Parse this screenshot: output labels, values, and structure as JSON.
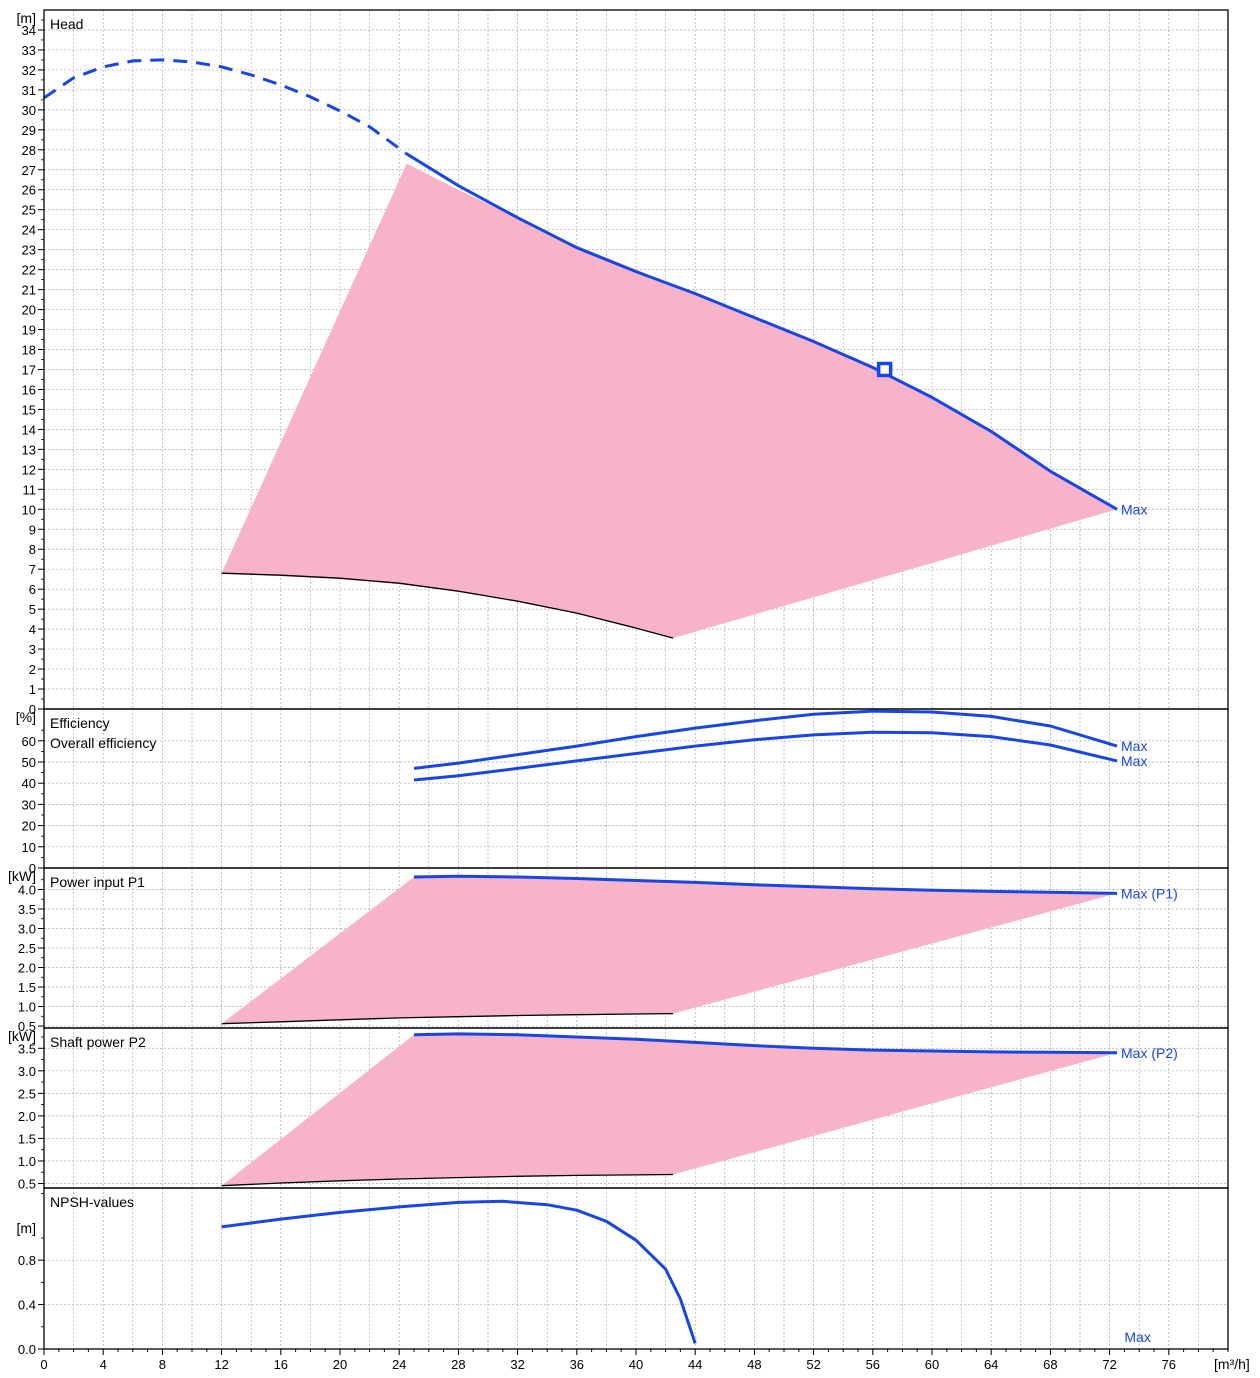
{
  "chart_data": {
    "type": "line",
    "x_axis": {
      "unit": "[m³/h]",
      "range": [
        0,
        80
      ],
      "ticks": [
        0,
        4,
        8,
        12,
        16,
        20,
        24,
        28,
        32,
        36,
        40,
        44,
        48,
        52,
        56,
        60,
        64,
        68,
        72,
        76
      ]
    },
    "colors": {
      "curve": "#1846e6",
      "area": "#f7b3c8",
      "grid": "#a8a8a8",
      "limit": "#000000"
    },
    "panels": [
      {
        "id": "head",
        "title": "Head",
        "unit": "[m]",
        "ylim": [
          0,
          35
        ],
        "ticks": [
          0,
          1,
          2,
          3,
          4,
          5,
          6,
          7,
          8,
          9,
          10,
          11,
          12,
          13,
          14,
          15,
          16,
          17,
          18,
          19,
          20,
          21,
          22,
          23,
          24,
          25,
          26,
          27,
          28,
          29,
          30,
          31,
          32,
          33,
          34
        ],
        "area": [
          [
            12,
            6.8
          ],
          [
            24.5,
            27.3
          ],
          [
            28,
            26
          ],
          [
            32,
            24.6
          ],
          [
            36,
            23.2
          ],
          [
            40,
            22
          ],
          [
            44,
            20.8
          ],
          [
            48,
            19.6
          ],
          [
            52,
            18.4
          ],
          [
            56,
            17.1
          ],
          [
            60,
            15.6
          ],
          [
            64,
            13.9
          ],
          [
            68,
            11.9
          ],
          [
            72.5,
            10
          ],
          [
            42.5,
            3.55
          ],
          [
            40,
            4.05
          ],
          [
            36,
            4.8
          ],
          [
            32,
            5.4
          ],
          [
            28,
            5.9
          ],
          [
            24,
            6.25
          ],
          [
            20,
            6.5
          ],
          [
            16,
            6.65
          ],
          [
            12,
            6.8
          ]
        ],
        "lower_limit": [
          [
            12,
            6.8
          ],
          [
            16,
            6.7
          ],
          [
            20,
            6.55
          ],
          [
            24,
            6.3
          ],
          [
            28,
            5.9
          ],
          [
            32,
            5.4
          ],
          [
            36,
            4.8
          ],
          [
            40,
            4.05
          ],
          [
            42.5,
            3.55
          ]
        ],
        "dashed": [
          [
            0,
            30.6
          ],
          [
            2,
            31.6
          ],
          [
            4,
            32.15
          ],
          [
            6,
            32.45
          ],
          [
            8,
            32.5
          ],
          [
            10,
            32.4
          ],
          [
            12,
            32.15
          ],
          [
            14,
            31.75
          ],
          [
            16,
            31.25
          ],
          [
            18,
            30.65
          ],
          [
            20,
            29.95
          ],
          [
            22,
            29.15
          ],
          [
            24.5,
            27.8
          ]
        ],
        "series": [
          {
            "label": "Max",
            "points": [
              [
                24.5,
                27.8
              ],
              [
                28,
                26.2
              ],
              [
                32,
                24.6
              ],
              [
                36,
                23.1
              ],
              [
                40,
                21.9
              ],
              [
                44,
                20.8
              ],
              [
                48,
                19.6
              ],
              [
                52,
                18.4
              ],
              [
                56,
                17.1
              ],
              [
                60,
                15.6
              ],
              [
                64,
                13.9
              ],
              [
                68,
                11.9
              ],
              [
                72.5,
                10
              ]
            ]
          }
        ],
        "marker": [
          56.8,
          17
        ]
      },
      {
        "id": "efficiency",
        "title": "Efficiency",
        "title2": "Overall efficiency",
        "unit": "[%]",
        "ylim": [
          0,
          75
        ],
        "ticks": [
          0,
          10,
          20,
          30,
          40,
          50,
          60
        ],
        "series": [
          {
            "label": "Max",
            "points": [
              [
                25,
                47
              ],
              [
                28,
                49.5
              ],
              [
                32,
                53.5
              ],
              [
                36,
                57.5
              ],
              [
                40,
                62
              ],
              [
                44,
                66
              ],
              [
                48,
                69.5
              ],
              [
                52,
                72.5
              ],
              [
                56,
                74
              ],
              [
                60,
                73.6
              ],
              [
                64,
                71.5
              ],
              [
                68,
                67
              ],
              [
                72.5,
                57.5
              ]
            ]
          },
          {
            "label": "Max",
            "points": [
              [
                25,
                41.5
              ],
              [
                28,
                43.5
              ],
              [
                32,
                47
              ],
              [
                36,
                50.5
              ],
              [
                40,
                54
              ],
              [
                44,
                57.5
              ],
              [
                48,
                60.5
              ],
              [
                52,
                62.8
              ],
              [
                56,
                64
              ],
              [
                60,
                63.8
              ],
              [
                64,
                62
              ],
              [
                68,
                58
              ],
              [
                72.5,
                50.5
              ]
            ]
          }
        ]
      },
      {
        "id": "p1",
        "title": "Power input P1",
        "unit": "[kW]",
        "ylim": [
          0.45,
          4.55
        ],
        "ticks": [
          0.5,
          1.0,
          1.5,
          2.0,
          2.5,
          3.0,
          3.5,
          4.0
        ],
        "tick_labels": [
          "0.5",
          "1.0",
          "1.5",
          "2.0",
          "2.5",
          "3.0",
          "3.5",
          "4.0"
        ],
        "area": [
          [
            12,
            0.56
          ],
          [
            25,
            4.32
          ],
          [
            28,
            4.34
          ],
          [
            32,
            4.32
          ],
          [
            36,
            4.28
          ],
          [
            40,
            4.23
          ],
          [
            44,
            4.18
          ],
          [
            48,
            4.12
          ],
          [
            52,
            4.07
          ],
          [
            56,
            4.02
          ],
          [
            60,
            3.98
          ],
          [
            64,
            3.95
          ],
          [
            68,
            3.93
          ],
          [
            72.5,
            3.9
          ],
          [
            42.5,
            0.82
          ],
          [
            36,
            0.79
          ],
          [
            28,
            0.74
          ],
          [
            20,
            0.66
          ],
          [
            12,
            0.56
          ]
        ],
        "lower_limit": [
          [
            12,
            0.56
          ],
          [
            16,
            0.61
          ],
          [
            20,
            0.66
          ],
          [
            24,
            0.71
          ],
          [
            28,
            0.74
          ],
          [
            32,
            0.77
          ],
          [
            36,
            0.79
          ],
          [
            40,
            0.81
          ],
          [
            42.5,
            0.82
          ]
        ],
        "series": [
          {
            "label": "Max (P1)",
            "points": [
              [
                25,
                4.32
              ],
              [
                28,
                4.34
              ],
              [
                32,
                4.32
              ],
              [
                36,
                4.28
              ],
              [
                40,
                4.23
              ],
              [
                44,
                4.18
              ],
              [
                48,
                4.12
              ],
              [
                52,
                4.07
              ],
              [
                56,
                4.02
              ],
              [
                60,
                3.98
              ],
              [
                64,
                3.95
              ],
              [
                68,
                3.93
              ],
              [
                72.5,
                3.9
              ]
            ]
          }
        ]
      },
      {
        "id": "p2",
        "title": "Shaft power P2",
        "unit": "[kW]",
        "ylim": [
          0.4,
          3.95
        ],
        "ticks": [
          0.5,
          1.0,
          1.5,
          2.0,
          2.5,
          3.0,
          3.5
        ],
        "tick_labels": [
          "0.5",
          "1.0",
          "1.5",
          "2.0",
          "2.5",
          "3.0",
          "3.5"
        ],
        "area": [
          [
            12,
            0.45
          ],
          [
            25,
            3.8
          ],
          [
            28,
            3.82
          ],
          [
            32,
            3.8
          ],
          [
            36,
            3.75
          ],
          [
            40,
            3.7
          ],
          [
            44,
            3.63
          ],
          [
            48,
            3.56
          ],
          [
            52,
            3.5
          ],
          [
            56,
            3.46
          ],
          [
            60,
            3.44
          ],
          [
            64,
            3.42
          ],
          [
            68,
            3.41
          ],
          [
            72.5,
            3.4
          ],
          [
            42.5,
            0.7
          ],
          [
            36,
            0.68
          ],
          [
            28,
            0.63
          ],
          [
            20,
            0.56
          ],
          [
            12,
            0.45
          ]
        ],
        "lower_limit": [
          [
            12,
            0.45
          ],
          [
            16,
            0.51
          ],
          [
            20,
            0.56
          ],
          [
            24,
            0.6
          ],
          [
            28,
            0.63
          ],
          [
            32,
            0.66
          ],
          [
            36,
            0.68
          ],
          [
            40,
            0.69
          ],
          [
            42.5,
            0.7
          ]
        ],
        "series": [
          {
            "label": "Max (P2)",
            "points": [
              [
                25,
                3.8
              ],
              [
                28,
                3.82
              ],
              [
                32,
                3.8
              ],
              [
                36,
                3.75
              ],
              [
                40,
                3.7
              ],
              [
                44,
                3.63
              ],
              [
                48,
                3.56
              ],
              [
                52,
                3.5
              ],
              [
                56,
                3.46
              ],
              [
                60,
                3.44
              ],
              [
                64,
                3.42
              ],
              [
                68,
                3.41
              ],
              [
                72.5,
                3.4
              ]
            ]
          }
        ]
      },
      {
        "id": "npsh",
        "title": "NPSH-values",
        "unit": "[m]",
        "ylim": [
          0,
          1.45
        ],
        "ticks": [
          0.0,
          0.4,
          0.8
        ],
        "tick_labels": [
          "0.0",
          "0.4",
          "0.8"
        ],
        "series": [
          {
            "label": "Max",
            "points": [
              [
                12,
                1.1
              ],
              [
                16,
                1.17
              ],
              [
                20,
                1.23
              ],
              [
                24,
                1.28
              ],
              [
                28,
                1.32
              ],
              [
                31,
                1.33
              ],
              [
                34,
                1.3
              ],
              [
                36,
                1.25
              ],
              [
                38,
                1.15
              ],
              [
                40,
                0.98
              ],
              [
                42,
                0.72
              ],
              [
                43,
                0.45
              ],
              [
                44,
                0.05
              ]
            ]
          }
        ],
        "label_pos": [
          73,
          0.11
        ]
      }
    ]
  }
}
